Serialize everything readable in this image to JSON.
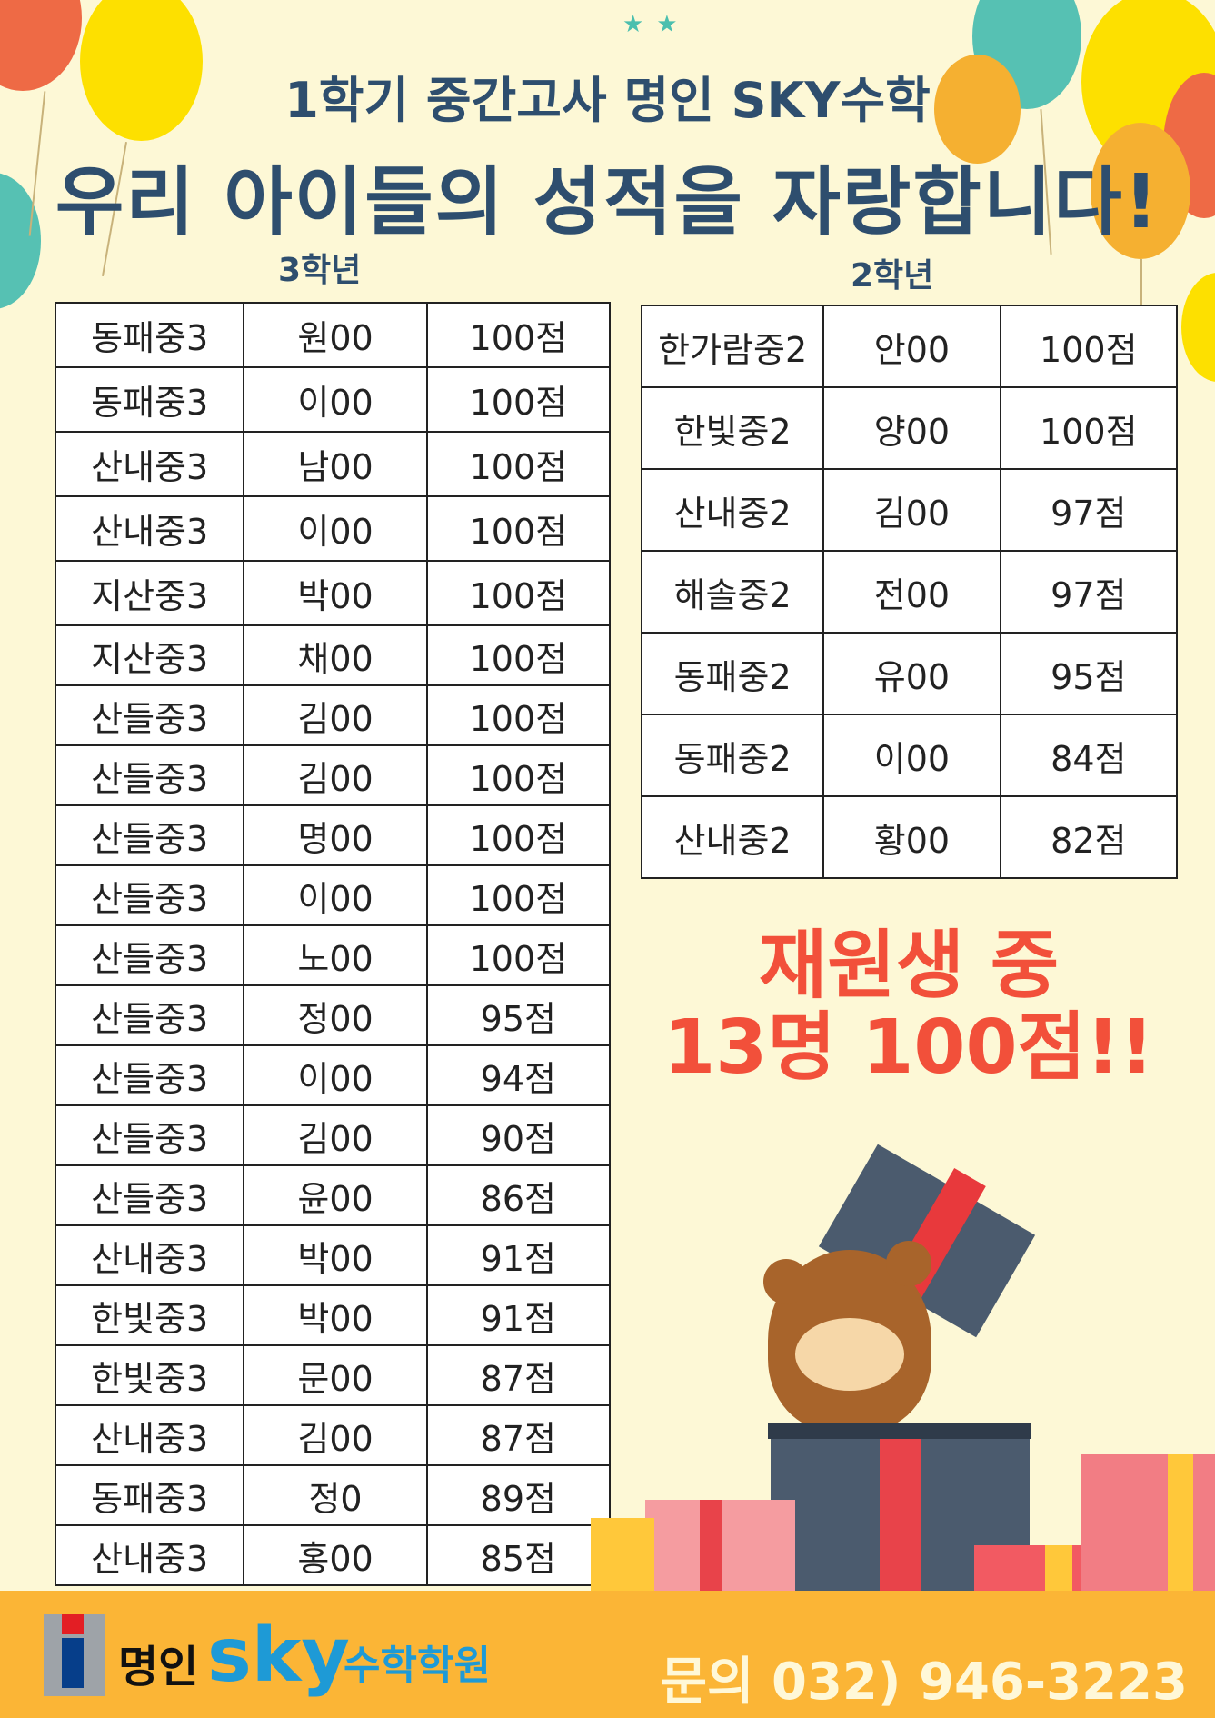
{
  "header": {
    "subtitle": "1학기 중간고사 명인 SKY수학",
    "title": "우리 아이들의 성적을 자랑합니다!"
  },
  "grade3": {
    "label": "3학년",
    "rows": [
      [
        "동패중3",
        "원00",
        "100점"
      ],
      [
        "동패중3",
        "이00",
        "100점"
      ],
      [
        "산내중3",
        "남00",
        "100점"
      ],
      [
        "산내중3",
        "이00",
        "100점"
      ],
      [
        "지산중3",
        "박00",
        "100점"
      ],
      [
        "지산중3",
        "채00",
        "100점"
      ],
      [
        "산들중3",
        "김00",
        "100점"
      ],
      [
        "산들중3",
        "김00",
        "100점"
      ],
      [
        "산들중3",
        "명00",
        "100점"
      ],
      [
        "산들중3",
        "이00",
        "100점"
      ],
      [
        "산들중3",
        "노00",
        "100점"
      ],
      [
        "산들중3",
        "정00",
        "95점"
      ],
      [
        "산들중3",
        "이00",
        "94점"
      ],
      [
        "산들중3",
        "김00",
        "90점"
      ],
      [
        "산들중3",
        "윤00",
        "86점"
      ],
      [
        "산내중3",
        "박00",
        "91점"
      ],
      [
        "한빛중3",
        "박00",
        "91점"
      ],
      [
        "한빛중3",
        "문00",
        "87점"
      ],
      [
        "산내중3",
        "김00",
        "87점"
      ],
      [
        "동패중3",
        "정0",
        "89점"
      ],
      [
        "산내중3",
        "홍00",
        "85점"
      ]
    ]
  },
  "grade2": {
    "label": "2학년",
    "rows": [
      [
        "한가람중2",
        "안00",
        "100점"
      ],
      [
        "한빛중2",
        "양00",
        "100점"
      ],
      [
        "산내중2",
        "김00",
        "97점"
      ],
      [
        "해솔중2",
        "전00",
        "97점"
      ],
      [
        "동패중2",
        "유00",
        "95점"
      ],
      [
        "동패중2",
        "이00",
        "84점"
      ],
      [
        "산내중2",
        "황00",
        "82점"
      ]
    ]
  },
  "promo": {
    "line1": "재원생 중",
    "line2": "13명 100점!!"
  },
  "footer": {
    "logo_text": "명인 SKY 수학학원",
    "logo_name": "명인",
    "logo_sky": "sky",
    "logo_suffix": "수학학원",
    "phone": "문의 032) 946-3223"
  },
  "colors": {
    "navy": "#2e4e6e",
    "promo_red": "#f2503a",
    "footer_orange": "#fbb536",
    "sky_blue": "#1e9ad6",
    "background": "#fdf8d6"
  }
}
